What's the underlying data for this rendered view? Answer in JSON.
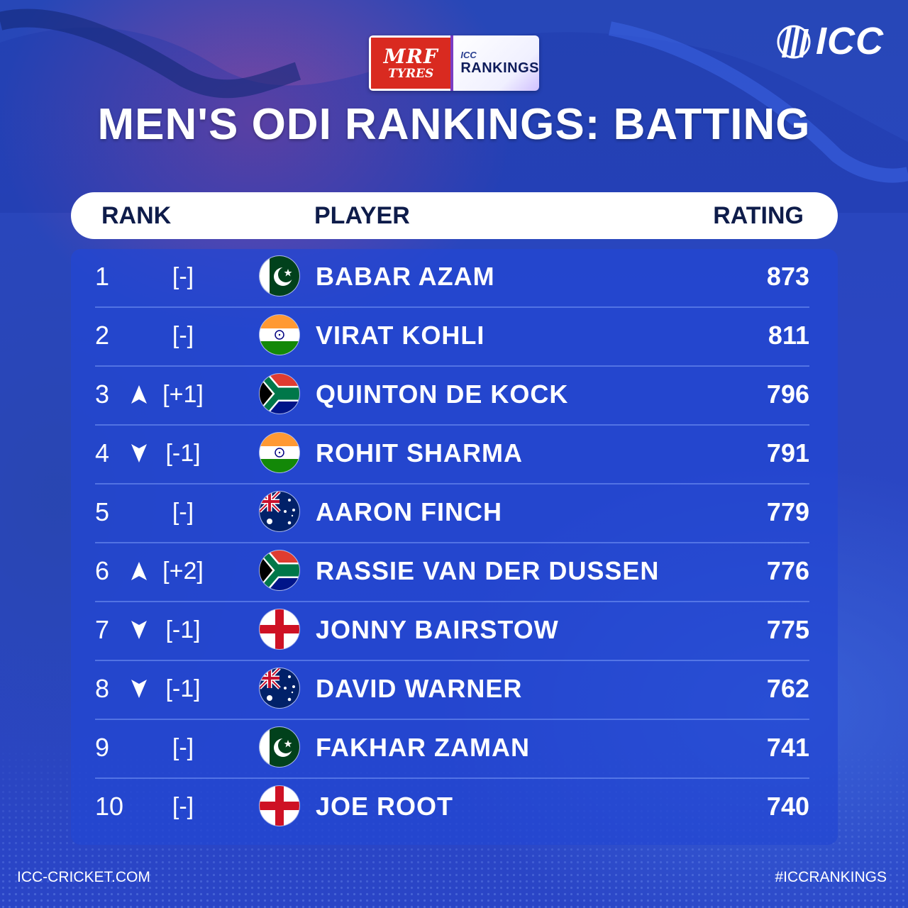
{
  "sponsor": {
    "brand_line1": "MRF",
    "brand_line2": "TYRES",
    "rankings_line1": "ICC",
    "rankings_line2": "RANKINGS"
  },
  "logo": {
    "text": "ICC",
    "icon": "icc-logo-icon"
  },
  "title": "MEN'S ODI RANKINGS: BATTING",
  "headers": {
    "rank": "RANK",
    "player": "PLAYER",
    "rating": "RATING"
  },
  "colors": {
    "background": "#2a45c6",
    "table": "#2346d2",
    "header_text": "#0e1c4a",
    "mrf_red": "#d92a20"
  },
  "rows": [
    {
      "rank": "1",
      "arrow": "none",
      "move": "[-]",
      "flag": "pakistan-flag-icon",
      "player": "BABAR AZAM",
      "rating": "873"
    },
    {
      "rank": "2",
      "arrow": "none",
      "move": "[-]",
      "flag": "india-flag-icon",
      "player": "VIRAT KOHLI",
      "rating": "811"
    },
    {
      "rank": "3",
      "arrow": "up",
      "move": "[+1]",
      "flag": "south-africa-flag-icon",
      "player": "QUINTON DE KOCK",
      "rating": "796"
    },
    {
      "rank": "4",
      "arrow": "down",
      "move": "[-1]",
      "flag": "india-flag-icon",
      "player": "ROHIT SHARMA",
      "rating": "791"
    },
    {
      "rank": "5",
      "arrow": "none",
      "move": "[-]",
      "flag": "australia-flag-icon",
      "player": "AARON FINCH",
      "rating": "779"
    },
    {
      "rank": "6",
      "arrow": "up",
      "move": "[+2]",
      "flag": "south-africa-flag-icon",
      "player": "RASSIE VAN DER DUSSEN",
      "rating": "776"
    },
    {
      "rank": "7",
      "arrow": "down",
      "move": "[-1]",
      "flag": "england-flag-icon",
      "player": "JONNY BAIRSTOW",
      "rating": "775"
    },
    {
      "rank": "8",
      "arrow": "down",
      "move": "[-1]",
      "flag": "australia-flag-icon",
      "player": "DAVID WARNER",
      "rating": "762"
    },
    {
      "rank": "9",
      "arrow": "none",
      "move": "[-]",
      "flag": "pakistan-flag-icon",
      "player": "FAKHAR ZAMAN",
      "rating": "741"
    },
    {
      "rank": "10",
      "arrow": "none",
      "move": "[-]",
      "flag": "england-flag-icon",
      "player": "JOE ROOT",
      "rating": "740"
    }
  ],
  "footer": {
    "left": "ICC-CRICKET.COM",
    "right": "#ICCRANKINGS"
  }
}
